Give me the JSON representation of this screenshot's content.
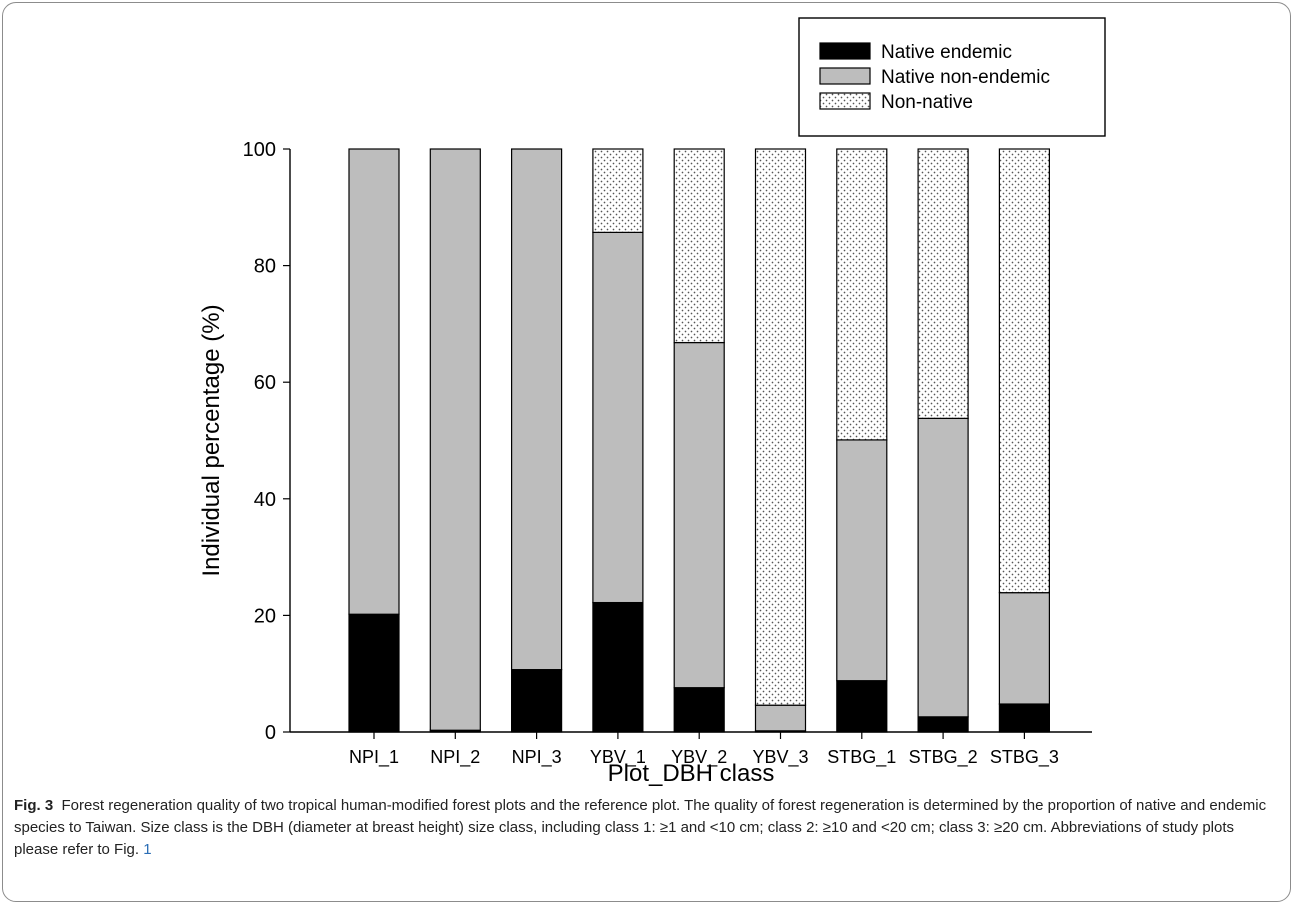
{
  "chart_data": {
    "type": "bar",
    "stacked": true,
    "categories": [
      "NPI_1",
      "NPI_2",
      "NPI_3",
      "YBV_1",
      "YBV_2",
      "YBV_3",
      "STBG_1",
      "STBG_2",
      "STBG_3"
    ],
    "series": [
      {
        "name": "Native endemic",
        "fill": "black",
        "values": [
          20.2,
          0.3,
          10.7,
          22.2,
          7.6,
          0.2,
          8.8,
          2.6,
          4.8
        ]
      },
      {
        "name": "Native non-endemic",
        "fill": "gray",
        "values": [
          79.8,
          99.7,
          89.3,
          63.5,
          59.2,
          4.4,
          41.3,
          51.2,
          19.1
        ]
      },
      {
        "name": "Non-native",
        "fill": "dotted",
        "values": [
          0,
          0,
          0,
          14.3,
          33.2,
          95.4,
          49.9,
          46.2,
          76.1
        ]
      }
    ],
    "xlabel": "Plot_DBH class",
    "ylabel": "Individual percentage (%)",
    "ylim": [
      0,
      100
    ],
    "yticks": [
      0,
      20,
      40,
      60,
      80,
      100
    ],
    "legend_position": "top-right",
    "grid": false
  },
  "caption": {
    "label": "Fig. 3",
    "text": "Forest regeneration quality of two tropical human-modified forest plots and the reference plot. The quality of forest regeneration is determined by the proportion of native and endemic species to Taiwan. Size class is the DBH (diameter at breast height) size class, including class 1: ≥1 and <10 cm; class 2: ≥10 and <20 cm; class 3: ≥20 cm. Abbreviations of study plots please refer to Fig. ",
    "link": "1"
  },
  "colors": {
    "endemic": "#000000",
    "non_endemic": "#bdbdbd",
    "dots": "#555555",
    "link": "#2a6db5"
  }
}
